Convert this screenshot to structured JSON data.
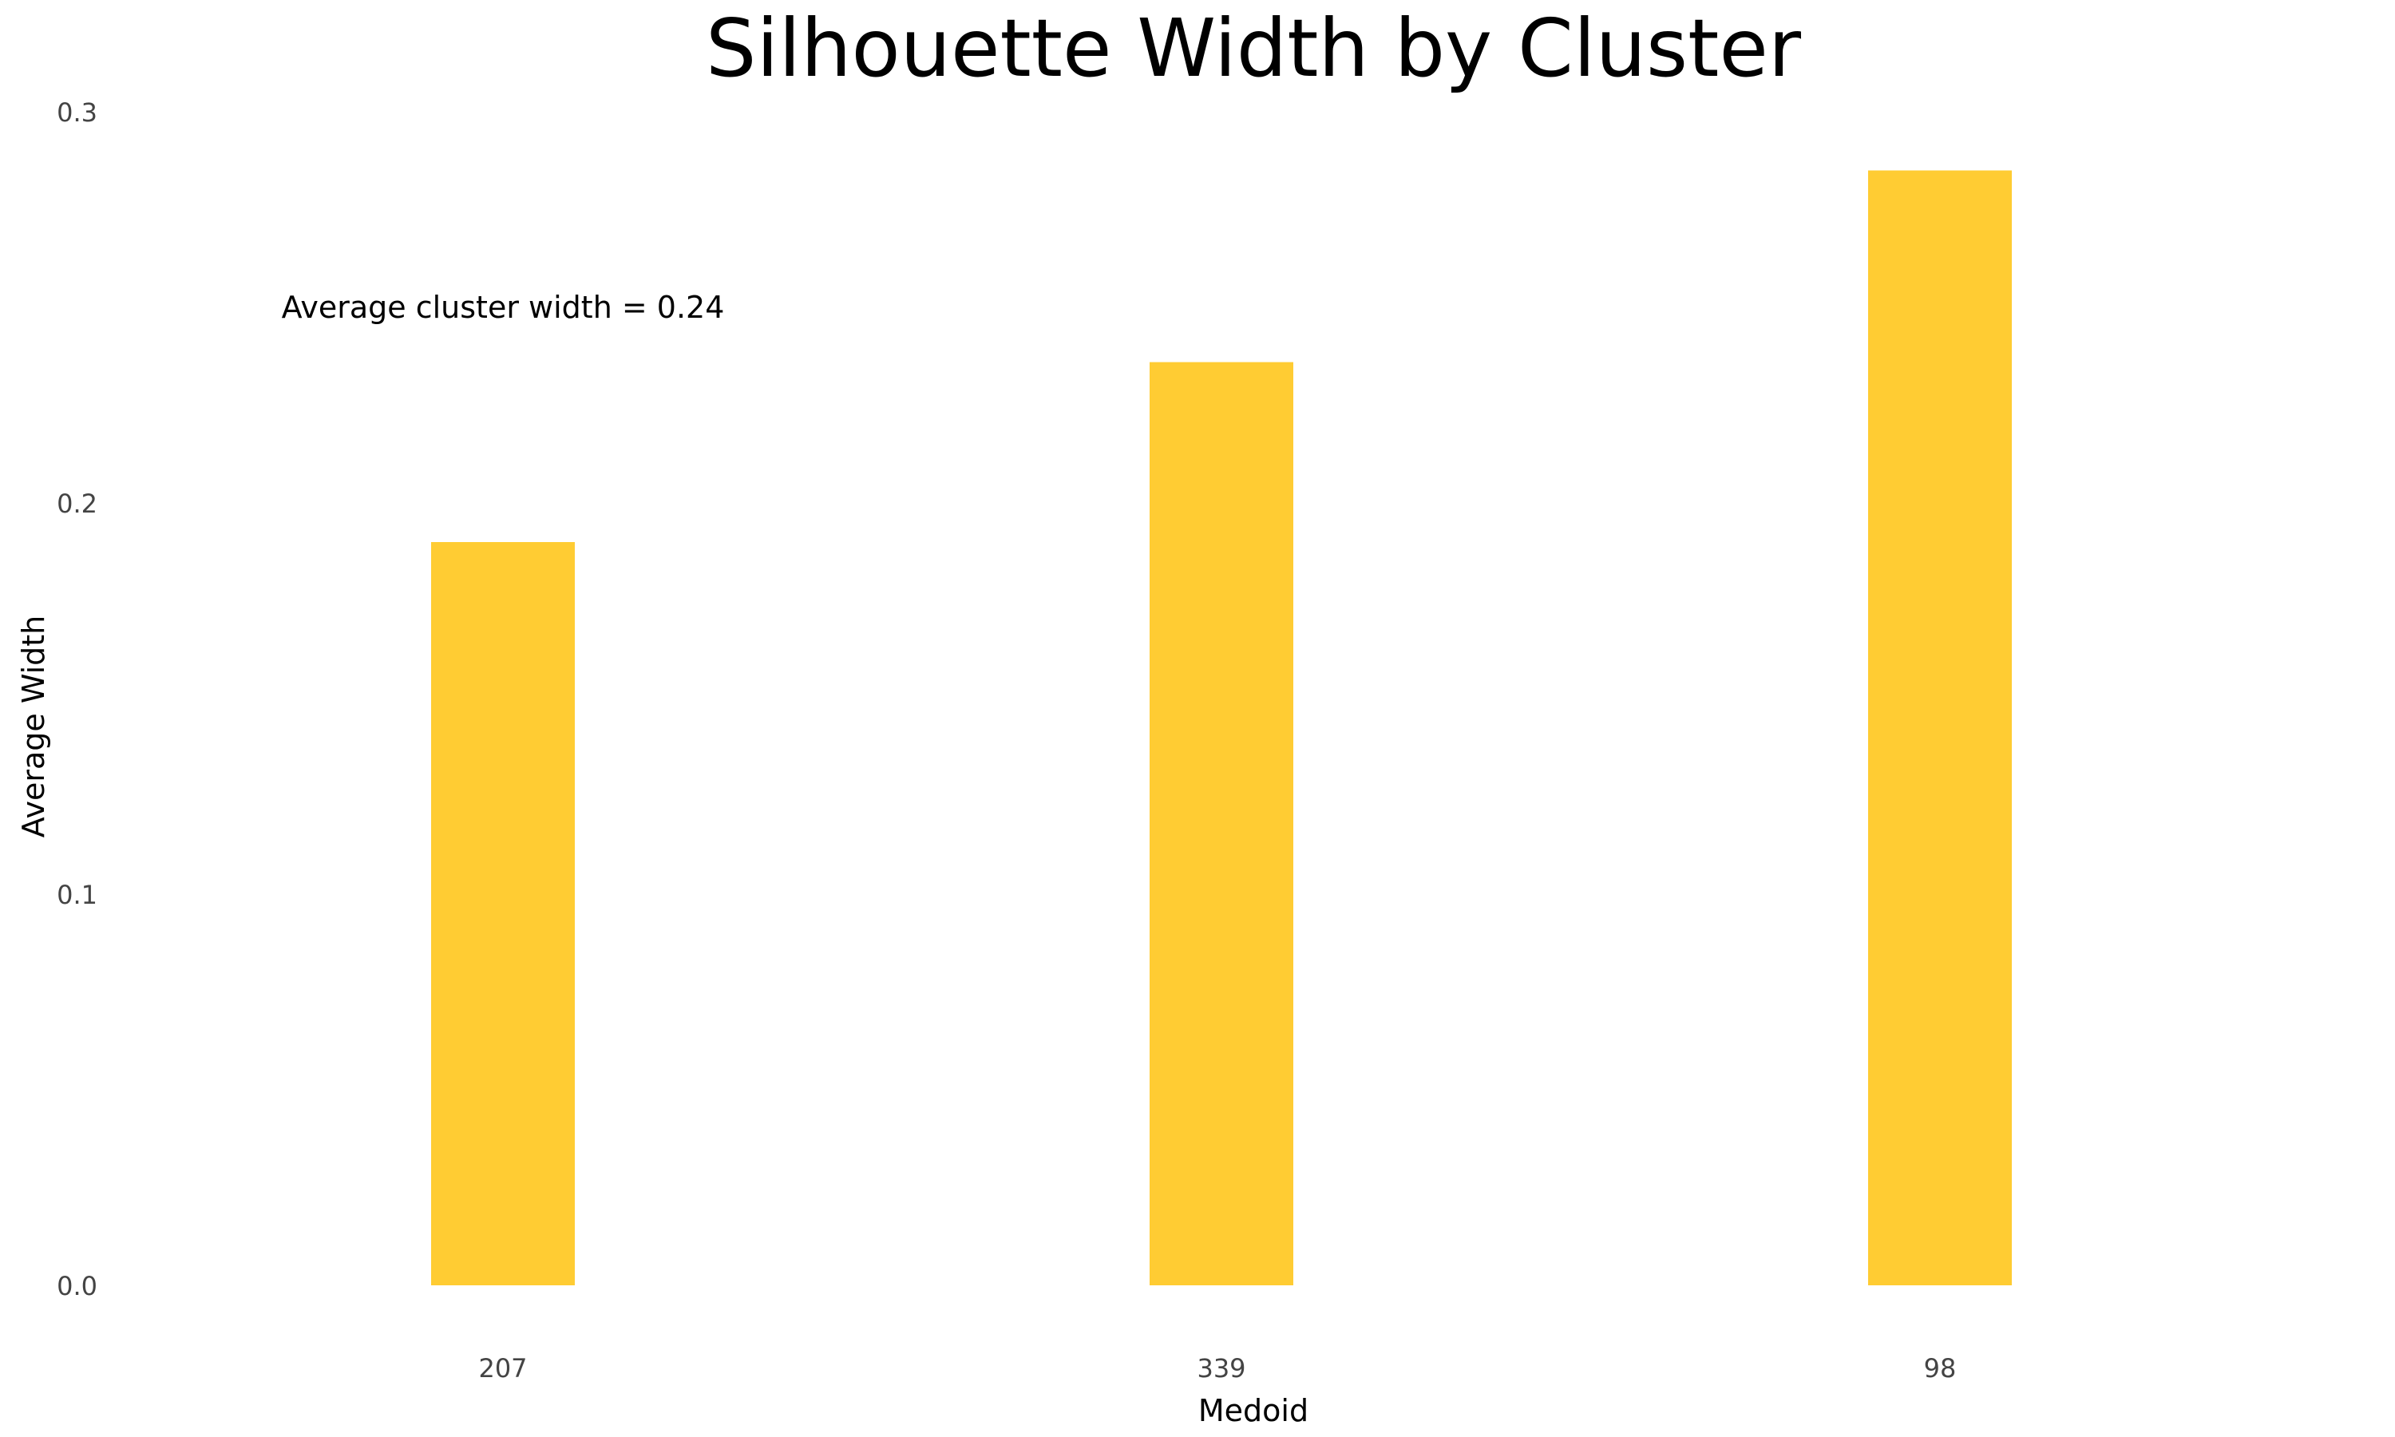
{
  "chart_data": {
    "type": "bar",
    "title": "Silhouette Width by Cluster",
    "xlabel": "Medoid",
    "ylabel": "Average Width",
    "categories": [
      "207",
      "339",
      "98"
    ],
    "values": [
      0.19,
      0.236,
      0.285
    ],
    "ylim": [
      0,
      0.3
    ],
    "yticks": [
      "0.0",
      "0.1",
      "0.2",
      "0.3"
    ],
    "ytick_values": [
      0,
      0.1,
      0.2,
      0.3
    ],
    "grid": false,
    "legend": "none",
    "bar_color": "#FFCC33",
    "annotation": {
      "text": "Average cluster width = 0.24",
      "x_category_index": 0,
      "y": 0.25
    }
  }
}
